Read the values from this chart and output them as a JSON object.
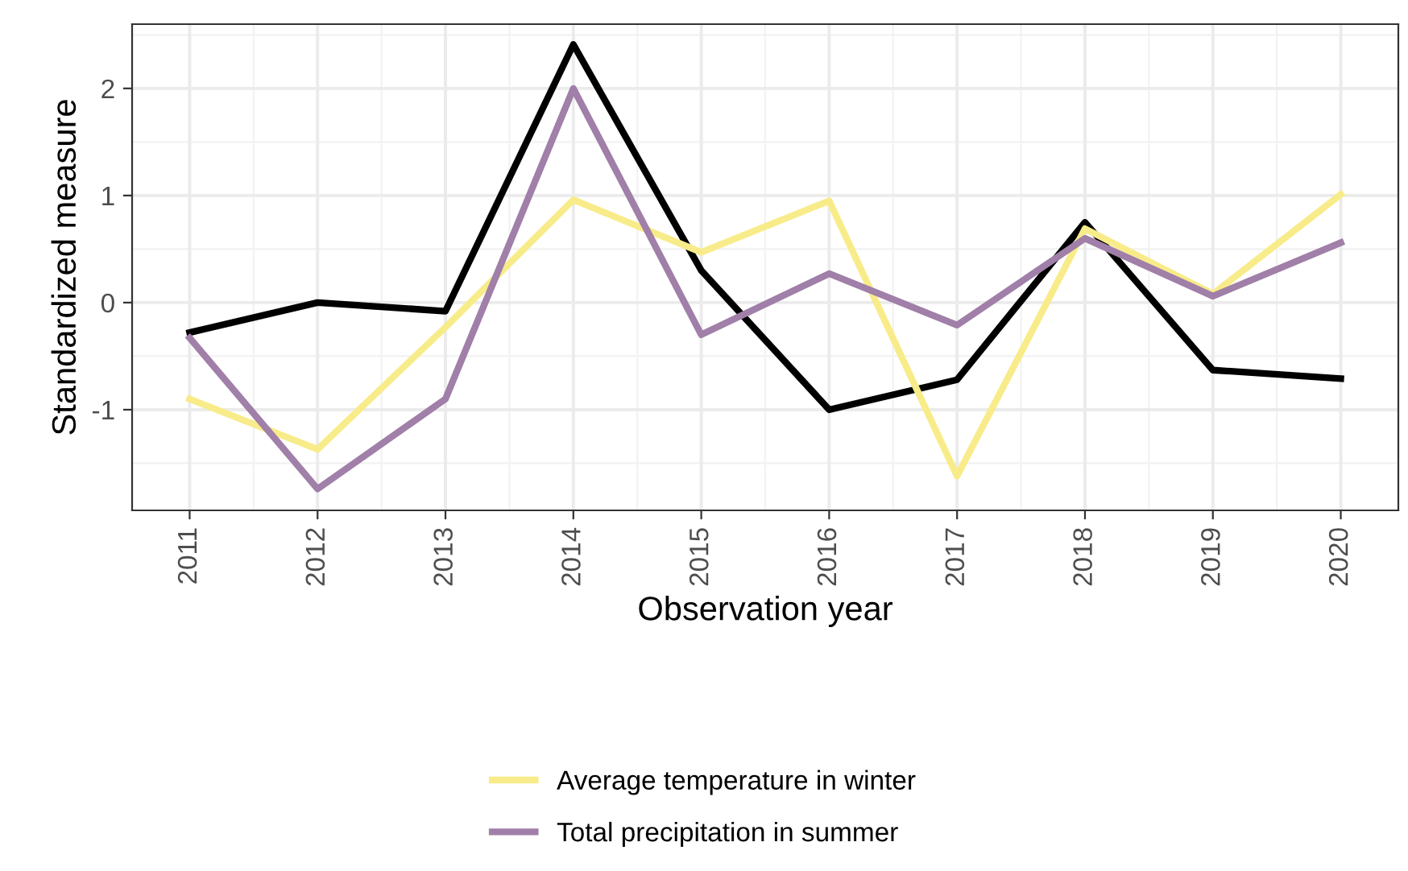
{
  "chart_data": {
    "type": "line",
    "xlabel": "Observation year",
    "ylabel": "Standardized measure",
    "x": [
      2011,
      2012,
      2013,
      2014,
      2015,
      2016,
      2017,
      2018,
      2019,
      2020
    ],
    "series": [
      {
        "color": "#000000",
        "values": [
          -0.28,
          0.0,
          -0.08,
          2.41,
          0.3,
          -1.0,
          -0.72,
          0.75,
          -0.63,
          -0.71
        ]
      },
      {
        "name": "Average temperature in winter",
        "color": "#f8ec8a",
        "values": [
          -0.9,
          -1.37,
          -0.23,
          0.96,
          0.47,
          0.95,
          -1.62,
          0.69,
          0.08,
          1.01
        ]
      },
      {
        "name": "Total precipitation in summer",
        "color": "#a07fa8",
        "values": [
          -0.33,
          -1.74,
          -0.9,
          2.0,
          -0.3,
          0.27,
          -0.21,
          0.6,
          0.06,
          0.56
        ]
      }
    ],
    "xlim": [
      2010.55,
      2020.45
    ],
    "xticks": [
      2011,
      2012,
      2013,
      2014,
      2015,
      2016,
      2017,
      2018,
      2019,
      2020
    ],
    "ylim": [
      -1.94,
      2.6
    ],
    "yticks": [
      -1,
      0,
      1,
      2
    ],
    "grid": true,
    "legend": "bottom",
    "marker": "none",
    "line_style": "solid"
  }
}
